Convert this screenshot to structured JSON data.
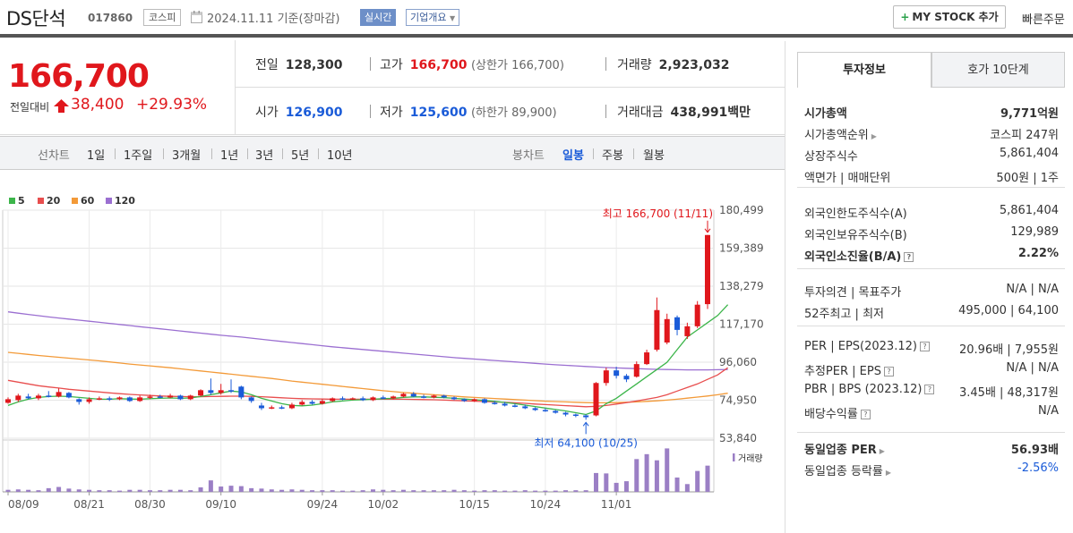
{
  "header": {
    "stock_name": "DS단석",
    "stock_code": "017860",
    "market": "코스피",
    "date_text": "2024.11.11 기준(장마감)",
    "realtime": "실시간",
    "corp_info": "기업개요",
    "my_stock_button": "MY STOCK 추가",
    "quick_order": "빠른주문"
  },
  "price": {
    "current": "166,700",
    "change_label": "전일대비",
    "change_value": "38,400",
    "change_pct": "+29.93%",
    "prev_close_label": "전일",
    "prev_close": "128,300",
    "high_label": "고가",
    "high": "166,700",
    "upper_limit": "(상한가 166,700)",
    "volume_label": "거래량",
    "volume": "2,923,032",
    "open_label": "시가",
    "open": "126,900",
    "low_label": "저가",
    "low": "125,600",
    "lower_limit": "(하한가 89,900)",
    "amount_label": "거래대금",
    "amount": "438,991",
    "amount_unit": "백만"
  },
  "period_bar": {
    "line_chart_label": "선차트",
    "line_periods": [
      "1일",
      "1주일",
      "3개월",
      "1년",
      "3년",
      "5년",
      "10년"
    ],
    "candle_chart_label": "봉차트",
    "candle_periods": [
      "일봉",
      "주봉",
      "월봉"
    ],
    "active_candle": "일봉"
  },
  "colors": {
    "up": "#e0171c",
    "down": "#1a5bd8",
    "ma5": "#3cb54a",
    "ma20": "#e84e4e",
    "ma60": "#f39a38",
    "ma120": "#9b6fd1",
    "volume": "#9b7fc5"
  },
  "chart_data": {
    "type": "candlestick",
    "legend": [
      "5",
      "20",
      "60",
      "120"
    ],
    "y_ticks": [
      "180,499",
      "159,389",
      "138,279",
      "117,170",
      "96,060",
      "74,950",
      "53,840"
    ],
    "ylim": [
      53840,
      180499
    ],
    "x_ticks": [
      "08/09",
      "08/21",
      "08/30",
      "09/10",
      "09/24",
      "10/02",
      "10/15",
      "10/24",
      "11/01"
    ],
    "annotations": {
      "max_label": "최고 166,700 (11/11)",
      "min_label": "최저 64,100 (10/25)"
    },
    "volume_label": "거래량",
    "candles": [
      {
        "o": 73500,
        "c": 75500,
        "h": 76500,
        "l": 73000,
        "v": 0.5
      },
      {
        "o": 75000,
        "c": 77500,
        "h": 78500,
        "l": 74000,
        "v": 0.6
      },
      {
        "o": 77000,
        "c": 76000,
        "h": 78500,
        "l": 75500,
        "v": 0.5
      },
      {
        "o": 76000,
        "c": 77500,
        "h": 78500,
        "l": 75000,
        "v": 0.4
      },
      {
        "o": 77500,
        "c": 77000,
        "h": 80000,
        "l": 76500,
        "v": 0.9
      },
      {
        "o": 77000,
        "c": 79500,
        "h": 81500,
        "l": 76500,
        "v": 1.2
      },
      {
        "o": 79000,
        "c": 76500,
        "h": 79500,
        "l": 76000,
        "v": 0.8
      },
      {
        "o": 75500,
        "c": 74000,
        "h": 76000,
        "l": 72500,
        "v": 0.6
      },
      {
        "o": 74000,
        "c": 75500,
        "h": 76500,
        "l": 73000,
        "v": 0.5
      },
      {
        "o": 75500,
        "c": 76000,
        "h": 77000,
        "l": 75000,
        "v": 0.4
      },
      {
        "o": 76000,
        "c": 75500,
        "h": 77000,
        "l": 74500,
        "v": 0.4
      },
      {
        "o": 75500,
        "c": 76500,
        "h": 77000,
        "l": 75000,
        "v": 0.3
      },
      {
        "o": 76500,
        "c": 74500,
        "h": 77000,
        "l": 74000,
        "v": 0.5
      },
      {
        "o": 74500,
        "c": 76500,
        "h": 77500,
        "l": 74000,
        "v": 0.5
      },
      {
        "o": 76500,
        "c": 77000,
        "h": 78000,
        "l": 75500,
        "v": 0.4
      },
      {
        "o": 77000,
        "c": 76500,
        "h": 78000,
        "l": 76000,
        "v": 0.4
      },
      {
        "o": 76500,
        "c": 77500,
        "h": 78500,
        "l": 76000,
        "v": 0.5
      },
      {
        "o": 77500,
        "c": 75500,
        "h": 78000,
        "l": 75000,
        "v": 0.5
      },
      {
        "o": 75500,
        "c": 77500,
        "h": 78000,
        "l": 75000,
        "v": 0.4
      },
      {
        "o": 77500,
        "c": 80500,
        "h": 81000,
        "l": 77000,
        "v": 1.1
      },
      {
        "o": 80500,
        "c": 79000,
        "h": 87000,
        "l": 78000,
        "v": 2.8
      },
      {
        "o": 79000,
        "c": 80500,
        "h": 84000,
        "l": 78000,
        "v": 1.3
      },
      {
        "o": 80500,
        "c": 80000,
        "h": 86500,
        "l": 79000,
        "v": 1.5
      },
      {
        "o": 82500,
        "c": 76500,
        "h": 83000,
        "l": 75500,
        "v": 1.4
      },
      {
        "o": 76500,
        "c": 74500,
        "h": 77000,
        "l": 73500,
        "v": 0.9
      },
      {
        "o": 72000,
        "c": 70500,
        "h": 73500,
        "l": 69500,
        "v": 0.8
      },
      {
        "o": 70500,
        "c": 71000,
        "h": 72000,
        "l": 70000,
        "v": 0.6
      },
      {
        "o": 71000,
        "c": 70500,
        "h": 72000,
        "l": 70000,
        "v": 0.5
      },
      {
        "o": 70500,
        "c": 72500,
        "h": 73500,
        "l": 70000,
        "v": 0.6
      },
      {
        "o": 72500,
        "c": 74000,
        "h": 75000,
        "l": 72000,
        "v": 0.5
      },
      {
        "o": 74000,
        "c": 73000,
        "h": 75000,
        "l": 72500,
        "v": 0.4
      },
      {
        "o": 73000,
        "c": 74500,
        "h": 75500,
        "l": 72500,
        "v": 0.4
      },
      {
        "o": 74500,
        "c": 76000,
        "h": 76500,
        "l": 74000,
        "v": 0.4
      },
      {
        "o": 76000,
        "c": 75500,
        "h": 77000,
        "l": 75000,
        "v": 0.3
      },
      {
        "o": 75500,
        "c": 76000,
        "h": 76500,
        "l": 75000,
        "v": 0.3
      },
      {
        "o": 76000,
        "c": 75000,
        "h": 77000,
        "l": 74500,
        "v": 0.4
      },
      {
        "o": 75000,
        "c": 76500,
        "h": 77000,
        "l": 74500,
        "v": 0.6
      },
      {
        "o": 76500,
        "c": 76000,
        "h": 77500,
        "l": 75500,
        "v": 0.5
      },
      {
        "o": 76000,
        "c": 77000,
        "h": 77500,
        "l": 75500,
        "v": 0.4
      },
      {
        "o": 77000,
        "c": 78500,
        "h": 79000,
        "l": 76500,
        "v": 0.5
      },
      {
        "o": 78500,
        "c": 77000,
        "h": 79500,
        "l": 76500,
        "v": 0.4
      },
      {
        "o": 77000,
        "c": 76500,
        "h": 78000,
        "l": 76000,
        "v": 0.4
      },
      {
        "o": 76500,
        "c": 77500,
        "h": 78000,
        "l": 76000,
        "v": 0.4
      },
      {
        "o": 77500,
        "c": 76500,
        "h": 78000,
        "l": 76000,
        "v": 0.4
      },
      {
        "o": 76500,
        "c": 75500,
        "h": 77000,
        "l": 75000,
        "v": 0.5
      },
      {
        "o": 75500,
        "c": 74500,
        "h": 76000,
        "l": 74000,
        "v": 0.4
      },
      {
        "o": 74500,
        "c": 75500,
        "h": 76000,
        "l": 74000,
        "v": 0.3
      },
      {
        "o": 75500,
        "c": 73500,
        "h": 76000,
        "l": 73000,
        "v": 0.4
      },
      {
        "o": 73500,
        "c": 73000,
        "h": 74500,
        "l": 72500,
        "v": 0.4
      },
      {
        "o": 73000,
        "c": 72000,
        "h": 74000,
        "l": 71500,
        "v": 0.3
      },
      {
        "o": 72000,
        "c": 71500,
        "h": 73000,
        "l": 71000,
        "v": 0.3
      },
      {
        "o": 71500,
        "c": 70500,
        "h": 72500,
        "l": 70000,
        "v": 0.4
      },
      {
        "o": 70500,
        "c": 69500,
        "h": 71000,
        "l": 69000,
        "v": 0.3
      },
      {
        "o": 69500,
        "c": 69000,
        "h": 70500,
        "l": 68500,
        "v": 0.3
      },
      {
        "o": 69000,
        "c": 68000,
        "h": 69500,
        "l": 67500,
        "v": 0.3
      },
      {
        "o": 68000,
        "c": 67000,
        "h": 68500,
        "l": 66000,
        "v": 0.4
      },
      {
        "o": 67000,
        "c": 66500,
        "h": 67500,
        "l": 65500,
        "v": 0.4
      },
      {
        "o": 66500,
        "c": 65500,
        "h": 67000,
        "l": 64100,
        "v": 0.4
      },
      {
        "o": 66500,
        "c": 84500,
        "h": 85000,
        "l": 66000,
        "v": 4.6
      },
      {
        "o": 84500,
        "c": 91500,
        "h": 93000,
        "l": 83000,
        "v": 4.5
      },
      {
        "o": 91500,
        "c": 88500,
        "h": 93500,
        "l": 87000,
        "v": 2.2
      },
      {
        "o": 88500,
        "c": 86500,
        "h": 89500,
        "l": 85000,
        "v": 2.6
      },
      {
        "o": 88000,
        "c": 95000,
        "h": 96500,
        "l": 87500,
        "v": 8.0
      },
      {
        "o": 95000,
        "c": 101500,
        "h": 103000,
        "l": 94500,
        "v": 9.2
      },
      {
        "o": 103000,
        "c": 125000,
        "h": 132000,
        "l": 102000,
        "v": 7.7
      },
      {
        "o": 107000,
        "c": 120000,
        "h": 123000,
        "l": 106000,
        "v": 10.6
      },
      {
        "o": 121000,
        "c": 114000,
        "h": 122000,
        "l": 111000,
        "v": 3.5
      },
      {
        "o": 110500,
        "c": 116000,
        "h": 118000,
        "l": 109000,
        "v": 1.9
      },
      {
        "o": 116000,
        "c": 128000,
        "h": 130000,
        "l": 115000,
        "v": 5.1
      },
      {
        "o": 128300,
        "c": 166700,
        "h": 166700,
        "l": 125600,
        "v": 6.4
      }
    ],
    "ma5_y": [
      72000,
      74000,
      75500,
      76500,
      77000,
      77200,
      77000,
      76500,
      76000,
      75500,
      75500,
      75800,
      75600,
      75500,
      75800,
      76000,
      76200,
      76000,
      76200,
      77000,
      78000,
      79000,
      80000,
      79500,
      78000,
      76000,
      74500,
      73000,
      72000,
      71800,
      72200,
      73000,
      74000,
      74500,
      75000,
      75200,
      75500,
      75800,
      76000,
      76500,
      76800,
      76800,
      76600,
      76400,
      76000,
      75600,
      75200,
      74800,
      74300,
      73700,
      73000,
      72200,
      71400,
      70600,
      69800,
      69000,
      68000,
      67000,
      69000,
      73000,
      76000,
      80000,
      84000,
      88000,
      92000,
      96000,
      103000,
      110000,
      114000,
      118000,
      122000,
      128000
    ],
    "ma20_y": [
      86000,
      85000,
      84000,
      83000,
      82300,
      81700,
      81000,
      80500,
      80000,
      79500,
      79000,
      78600,
      78200,
      77900,
      77600,
      77300,
      77100,
      77000,
      76900,
      76900,
      77000,
      77100,
      77200,
      77200,
      77100,
      76900,
      76600,
      76300,
      76000,
      75800,
      75700,
      75600,
      75500,
      75500,
      75500,
      75500,
      75500,
      75500,
      75500,
      75500,
      75400,
      75300,
      75200,
      75000,
      74800,
      74600,
      74400,
      74200,
      74000,
      73800,
      73500,
      73200,
      72800,
      72500,
      72200,
      71900,
      71600,
      71300,
      71500,
      72000,
      72800,
      73600,
      74500,
      75500,
      76500,
      78000,
      80000,
      82000,
      84000,
      86500,
      89000,
      93000
    ],
    "ma60_y": [
      101500,
      101000,
      100400,
      99800,
      99300,
      98800,
      98300,
      97800,
      97300,
      96800,
      96200,
      95600,
      95000,
      94500,
      94000,
      93500,
      93000,
      92400,
      91800,
      91200,
      90600,
      90000,
      89400,
      88800,
      88200,
      87600,
      87000,
      86300,
      85600,
      85000,
      84400,
      83800,
      83200,
      82600,
      82000,
      81400,
      80800,
      80200,
      79700,
      79200,
      78800,
      78400,
      78000,
      77600,
      77200,
      76800,
      76500,
      76200,
      75900,
      75600,
      75300,
      75000,
      74700,
      74400,
      74200,
      74000,
      73800,
      73600,
      73500,
      73500,
      73600,
      73800,
      74000,
      74300,
      74600,
      75000,
      75500,
      76100,
      76700,
      77300,
      78000,
      78800
    ],
    "ma120_y": [
      124000,
      123300,
      122600,
      121900,
      121200,
      120600,
      120000,
      119400,
      118800,
      118200,
      117600,
      117000,
      116400,
      115800,
      115200,
      114600,
      114000,
      113400,
      112800,
      112200,
      111600,
      111000,
      110500,
      110000,
      109400,
      108800,
      108200,
      107600,
      107000,
      106400,
      105800,
      105200,
      104600,
      104100,
      103600,
      103100,
      102600,
      102100,
      101600,
      101100,
      100600,
      100100,
      99600,
      99100,
      98600,
      98200,
      97800,
      97400,
      97000,
      96600,
      96200,
      95800,
      95400,
      95000,
      94600,
      94300,
      94000,
      93700,
      93400,
      93100,
      92900,
      92700,
      92500,
      92300,
      92100,
      92000,
      91900,
      91800,
      91800,
      91800,
      91900,
      92000
    ]
  },
  "investment_info": {
    "tab_active": "투자정보",
    "tab_inactive": "호가 10단계",
    "rows": [
      {
        "label": "시가총액",
        "value": "9,771억원"
      },
      {
        "label": "시가총액순위",
        "value": "코스피 247위"
      },
      {
        "label": "상장주식수",
        "value": "5,861,404"
      },
      {
        "label": "액면가 | 매매단위",
        "value": "500원 | 1주"
      },
      {
        "label": "외국인한도주식수(A)",
        "value": "5,861,404"
      },
      {
        "label": "외국인보유주식수(B)",
        "value": "129,989"
      },
      {
        "label": "외국인소진율(B/A)",
        "value": "2.22%"
      },
      {
        "label": "투자의견 | 목표주가",
        "value": "N/A | N/A"
      },
      {
        "label": "52주최고 | 최저",
        "value": "495,000 | 64,100"
      },
      {
        "label": "PER | EPS(2023.12)",
        "value": "20.96배 | 7,955원"
      },
      {
        "label": "추정PER | EPS",
        "value": "N/A | N/A"
      },
      {
        "label": "PBR | BPS (2023.12)",
        "value": "3.45배 | 48,317원"
      },
      {
        "label": "배당수익률",
        "value": "N/A"
      },
      {
        "label": "동일업종 PER",
        "value": "56.93배"
      },
      {
        "label": "동일업종 등락률",
        "value": "-2.56%"
      }
    ]
  }
}
